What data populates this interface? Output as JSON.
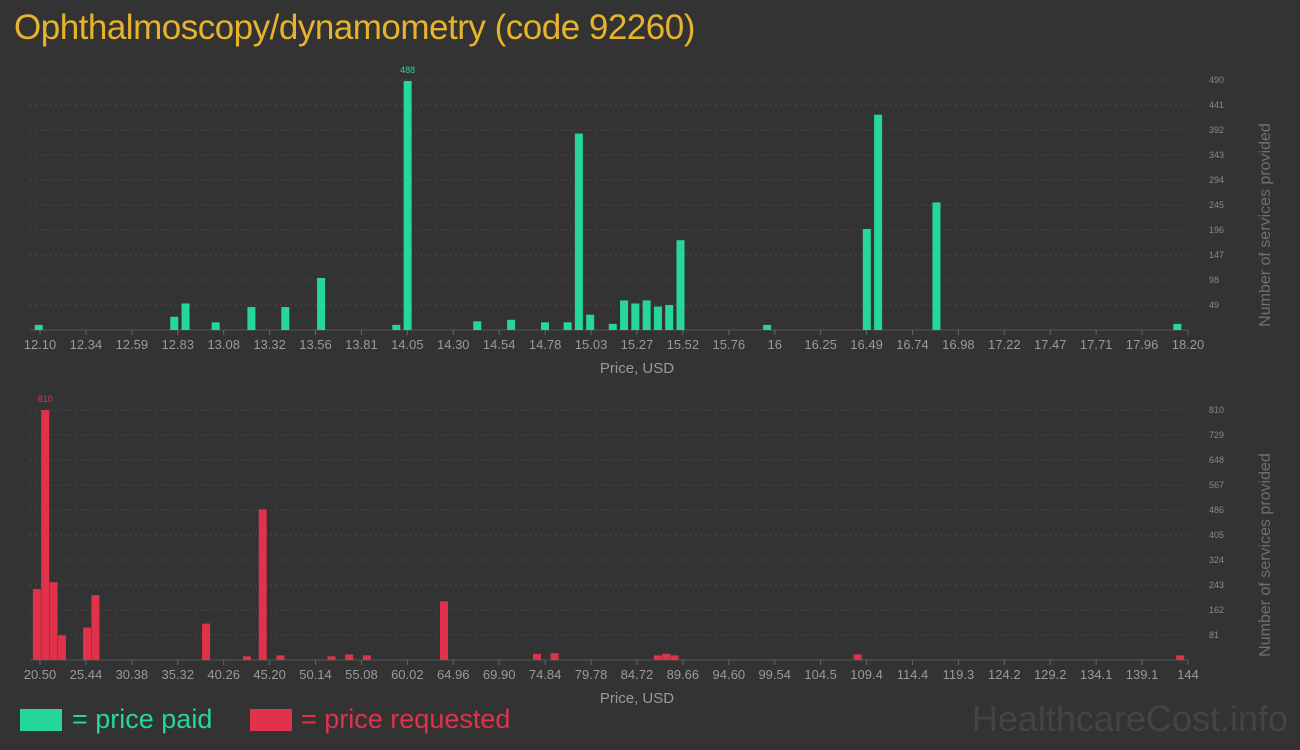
{
  "title": "Ophthalmoscopy/dynamometry (code 92260)",
  "legend": {
    "paid_label": "= price paid",
    "requested_label": "= price requested"
  },
  "watermark": "HealthcareCost.info",
  "colors": {
    "paid": "#26d79a",
    "requested": "#e0334b",
    "title": "#e8b32c",
    "background": "#333333"
  },
  "chart_data": [
    {
      "type": "bar",
      "series": [
        {
          "name": "price paid"
        }
      ],
      "xlabel": "Price, USD",
      "ylabel": "Number of services provided",
      "xlim": [
        12.1,
        18.2
      ],
      "ylim": [
        0,
        490
      ],
      "x_ticks": [
        "12.10",
        "12.34",
        "12.59",
        "12.83",
        "13.08",
        "13.32",
        "13.56",
        "13.81",
        "14.05",
        "14.30",
        "14.54",
        "14.78",
        "15.03",
        "15.27",
        "15.52",
        "15.76",
        "16",
        "16.25",
        "16.49",
        "16.74",
        "16.98",
        "17.22",
        "17.47",
        "17.71",
        "17.96",
        "18.20"
      ],
      "y_ticks": [
        "49",
        "98",
        "147",
        "196",
        "245",
        "294",
        "343",
        "392",
        "441",
        "490"
      ],
      "max_label": "488",
      "bars": [
        {
          "x": 12.12,
          "y": 10
        },
        {
          "x": 12.84,
          "y": 26
        },
        {
          "x": 12.9,
          "y": 52
        },
        {
          "x": 13.06,
          "y": 15
        },
        {
          "x": 13.25,
          "y": 45
        },
        {
          "x": 13.43,
          "y": 45
        },
        {
          "x": 13.62,
          "y": 102
        },
        {
          "x": 14.02,
          "y": 10
        },
        {
          "x": 14.08,
          "y": 488
        },
        {
          "x": 14.45,
          "y": 17
        },
        {
          "x": 14.63,
          "y": 20
        },
        {
          "x": 14.81,
          "y": 15
        },
        {
          "x": 14.93,
          "y": 15
        },
        {
          "x": 14.99,
          "y": 385
        },
        {
          "x": 15.05,
          "y": 30
        },
        {
          "x": 15.17,
          "y": 12
        },
        {
          "x": 15.23,
          "y": 58
        },
        {
          "x": 15.29,
          "y": 52
        },
        {
          "x": 15.35,
          "y": 58
        },
        {
          "x": 15.41,
          "y": 46
        },
        {
          "x": 15.47,
          "y": 49
        },
        {
          "x": 15.53,
          "y": 176
        },
        {
          "x": 15.99,
          "y": 10
        },
        {
          "x": 16.52,
          "y": 198
        },
        {
          "x": 16.58,
          "y": 422
        },
        {
          "x": 16.89,
          "y": 250
        },
        {
          "x": 18.17,
          "y": 12
        }
      ]
    },
    {
      "type": "bar",
      "series": [
        {
          "name": "price requested"
        }
      ],
      "xlabel": "Price, USD",
      "ylabel": "Number of services provided",
      "xlim": [
        20.5,
        144
      ],
      "ylim": [
        0,
        810
      ],
      "x_ticks": [
        "20.50",
        "25.44",
        "30.38",
        "35.32",
        "40.26",
        "45.20",
        "50.14",
        "55.08",
        "60.02",
        "64.96",
        "69.90",
        "74.84",
        "79.78",
        "84.72",
        "89.66",
        "94.60",
        "99.54",
        "104.5",
        "109.4",
        "114.4",
        "119.3",
        "124.2",
        "129.2",
        "134.1",
        "139.1",
        "144"
      ],
      "y_ticks": [
        "81",
        "162",
        "243",
        "324",
        "405",
        "486",
        "567",
        "648",
        "729",
        "810"
      ],
      "max_label": "810",
      "bars": [
        {
          "x": 20.7,
          "y": 230
        },
        {
          "x": 21.6,
          "y": 810
        },
        {
          "x": 22.5,
          "y": 252
        },
        {
          "x": 23.4,
          "y": 80
        },
        {
          "x": 26.1,
          "y": 105
        },
        {
          "x": 27.0,
          "y": 210
        },
        {
          "x": 38.9,
          "y": 118
        },
        {
          "x": 43.3,
          "y": 12
        },
        {
          "x": 45.0,
          "y": 488
        },
        {
          "x": 46.9,
          "y": 15
        },
        {
          "x": 52.4,
          "y": 12
        },
        {
          "x": 54.3,
          "y": 18
        },
        {
          "x": 56.2,
          "y": 15
        },
        {
          "x": 64.5,
          "y": 190
        },
        {
          "x": 74.5,
          "y": 20
        },
        {
          "x": 76.4,
          "y": 22
        },
        {
          "x": 87.5,
          "y": 15
        },
        {
          "x": 88.4,
          "y": 20
        },
        {
          "x": 89.3,
          "y": 15
        },
        {
          "x": 109.0,
          "y": 18
        },
        {
          "x": 143.7,
          "y": 15
        }
      ]
    }
  ]
}
